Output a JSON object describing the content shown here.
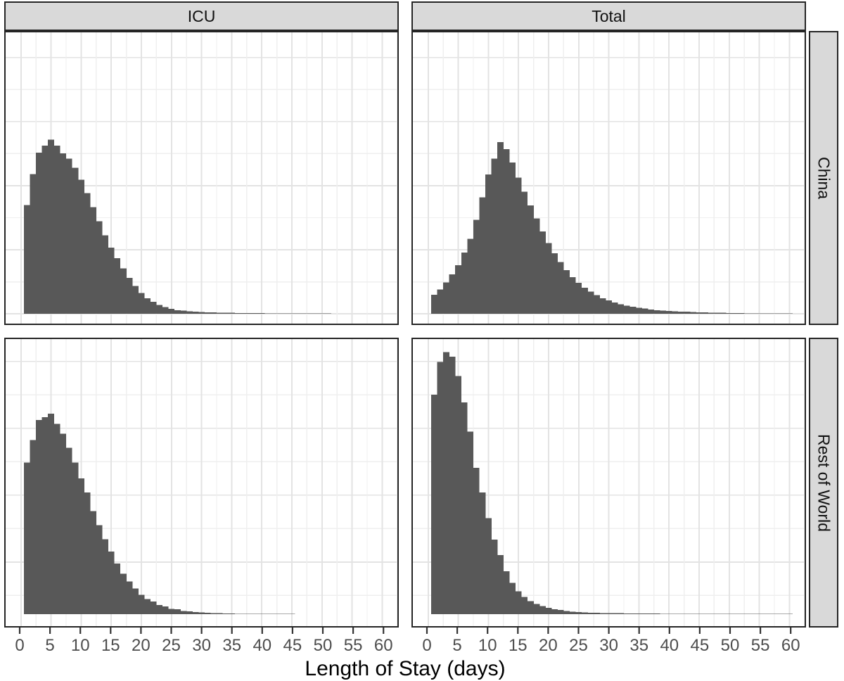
{
  "figure": {
    "xlabel": "Length of Stay (days)",
    "facet_cols": [
      "ICU",
      "Total"
    ],
    "facet_rows": [
      "China",
      "Rest of World"
    ]
  },
  "chart_data": {
    "type": "bar",
    "subtype": "faceted-histogram",
    "title": "",
    "xlabel": "Length of Stay (days)",
    "ylabel": "",
    "x_ticks": [
      0,
      5,
      10,
      15,
      20,
      25,
      30,
      35,
      40,
      45,
      50,
      55,
      60
    ],
    "x_range": [
      0,
      62
    ],
    "bin_width_days": 1,
    "first_bin_center_day": 1,
    "grid": "on",
    "legend": "none",
    "y_axis_labels": "none (unlabeled density axis)",
    "facet_layout": {
      "columns": [
        "ICU",
        "Total"
      ],
      "rows": [
        "China",
        "Rest of World"
      ]
    },
    "colors": {
      "bar": "#585858",
      "strip_bg": "#d9d9d9",
      "panel_bg": "#ffffff",
      "panel_border": "#252525",
      "grid_major": "#e3e3e3",
      "grid_minor": "#efefef",
      "tick_mark": "#333333",
      "tick_label": "#4d4d4d",
      "axis_title": "#000000"
    },
    "panels": [
      {
        "col": "ICU",
        "row": "China",
        "col_index": 0,
        "row_index": 0,
        "peak_day": 5,
        "rel_heights": [
          0.373,
          0.48,
          0.553,
          0.578,
          0.598,
          0.578,
          0.551,
          0.533,
          0.502,
          0.46,
          0.414,
          0.366,
          0.318,
          0.27,
          0.227,
          0.191,
          0.156,
          0.124,
          0.096,
          0.072,
          0.053,
          0.041,
          0.031,
          0.023,
          0.017,
          0.013,
          0.011,
          0.009,
          0.0075,
          0.006,
          0.0055,
          0.005,
          0.0045,
          0.004,
          0.0035,
          0.003,
          0.003,
          0.0028,
          0.0025,
          0.0022,
          0.002,
          0.002,
          0.0018,
          0.0015,
          0.0012,
          0.001,
          0.001,
          0.0008,
          0.0005,
          0.0005,
          0.0003,
          0,
          0,
          0,
          0,
          0,
          0,
          0,
          0,
          0
        ]
      },
      {
        "col": "Total",
        "row": "China",
        "col_index": 1,
        "row_index": 0,
        "peak_day": 12,
        "rel_heights": [
          0.065,
          0.084,
          0.108,
          0.136,
          0.167,
          0.211,
          0.258,
          0.323,
          0.4,
          0.478,
          0.533,
          0.59,
          0.565,
          0.52,
          0.468,
          0.42,
          0.372,
          0.328,
          0.283,
          0.243,
          0.208,
          0.178,
          0.15,
          0.126,
          0.106,
          0.09,
          0.076,
          0.064,
          0.054,
          0.046,
          0.039,
          0.033,
          0.028,
          0.024,
          0.021,
          0.018,
          0.015,
          0.013,
          0.011,
          0.01,
          0.009,
          0.008,
          0.007,
          0.006,
          0.0055,
          0.005,
          0.0045,
          0.004,
          0.0035,
          0.003,
          0.003,
          0.0025,
          0.002,
          0.002,
          0.002,
          0.0015,
          0.0015,
          0.001,
          0.001,
          0.001
        ]
      },
      {
        "col": "ICU",
        "row": "Rest of World",
        "col_index": 0,
        "row_index": 1,
        "peak_day": 5,
        "rel_heights": [
          0.529,
          0.607,
          0.677,
          0.687,
          0.699,
          0.663,
          0.629,
          0.58,
          0.529,
          0.473,
          0.425,
          0.359,
          0.311,
          0.262,
          0.218,
          0.177,
          0.141,
          0.114,
          0.09,
          0.068,
          0.053,
          0.044,
          0.032,
          0.027,
          0.019,
          0.017,
          0.012,
          0.01,
          0.0075,
          0.006,
          0.005,
          0.004,
          0.0035,
          0.003,
          0.0025,
          0.002,
          0.002,
          0.0015,
          0.001,
          0.001,
          0.001,
          0.0008,
          0.0006,
          0.0005,
          0.0004,
          0,
          0,
          0,
          0,
          0,
          0,
          0,
          0,
          0,
          0,
          0,
          0,
          0,
          0,
          0
        ]
      },
      {
        "col": "Total",
        "row": "Rest of World",
        "col_index": 1,
        "row_index": 1,
        "peak_day": 3,
        "rel_heights": [
          0.765,
          0.879,
          0.913,
          0.898,
          0.83,
          0.738,
          0.636,
          0.51,
          0.425,
          0.335,
          0.26,
          0.206,
          0.15,
          0.109,
          0.08,
          0.061,
          0.046,
          0.036,
          0.029,
          0.022,
          0.018,
          0.015,
          0.011,
          0.009,
          0.0075,
          0.0065,
          0.0055,
          0.005,
          0.0045,
          0.004,
          0.0038,
          0.0035,
          0.0032,
          0.003,
          0.0028,
          0.0026,
          0.0025,
          0.0023,
          0.0022,
          0.002,
          0.002,
          0.0019,
          0.0018,
          0.0017,
          0.0016,
          0.0015,
          0.0015,
          0.0014,
          0.0013,
          0.0012,
          0.0012,
          0.0011,
          0.001,
          0.001,
          0.001,
          0.0009,
          0.0008,
          0.0008,
          0.0007,
          0.0007
        ]
      }
    ]
  }
}
